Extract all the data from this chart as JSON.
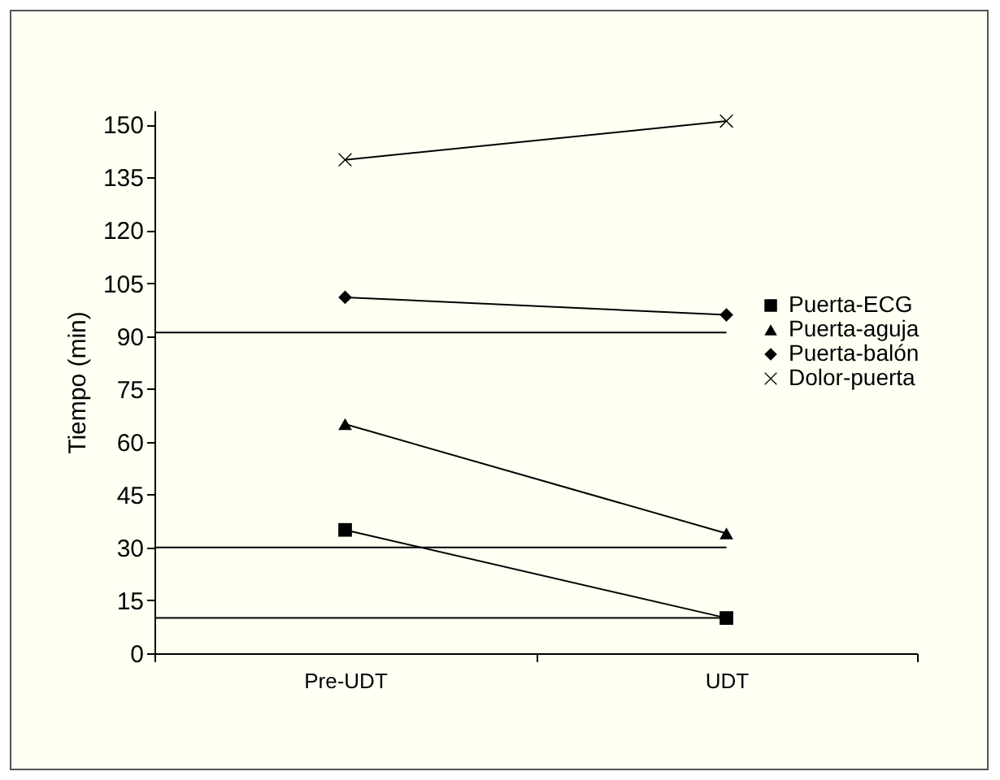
{
  "chart_data": {
    "type": "line",
    "ylabel": "Tiempo (min)",
    "categories": [
      "Pre-UDT",
      "UDT"
    ],
    "series": [
      {
        "name": "Puerta-ECG",
        "color": "#000000",
        "marker": "square",
        "values": [
          35,
          10
        ]
      },
      {
        "name": "Puerta-aguja",
        "color": "#000000",
        "marker": "triangle",
        "values": [
          65,
          34
        ]
      },
      {
        "name": "Puerta-balón",
        "color": "#000000",
        "marker": "diamond",
        "values": [
          101,
          96
        ]
      },
      {
        "name": "Dolor-puerta",
        "color": "#000000",
        "marker": "cross",
        "values": [
          140,
          151
        ]
      }
    ],
    "ylim": [
      0,
      154
    ],
    "yticks": [
      0,
      15,
      30,
      45,
      60,
      75,
      90,
      105,
      120,
      135,
      150
    ],
    "ref_lines": [
      {
        "axis": "y",
        "value": 91
      },
      {
        "axis": "y",
        "value": 30
      },
      {
        "axis": "y",
        "value": 10
      }
    ],
    "grid": false,
    "legend": "right"
  }
}
